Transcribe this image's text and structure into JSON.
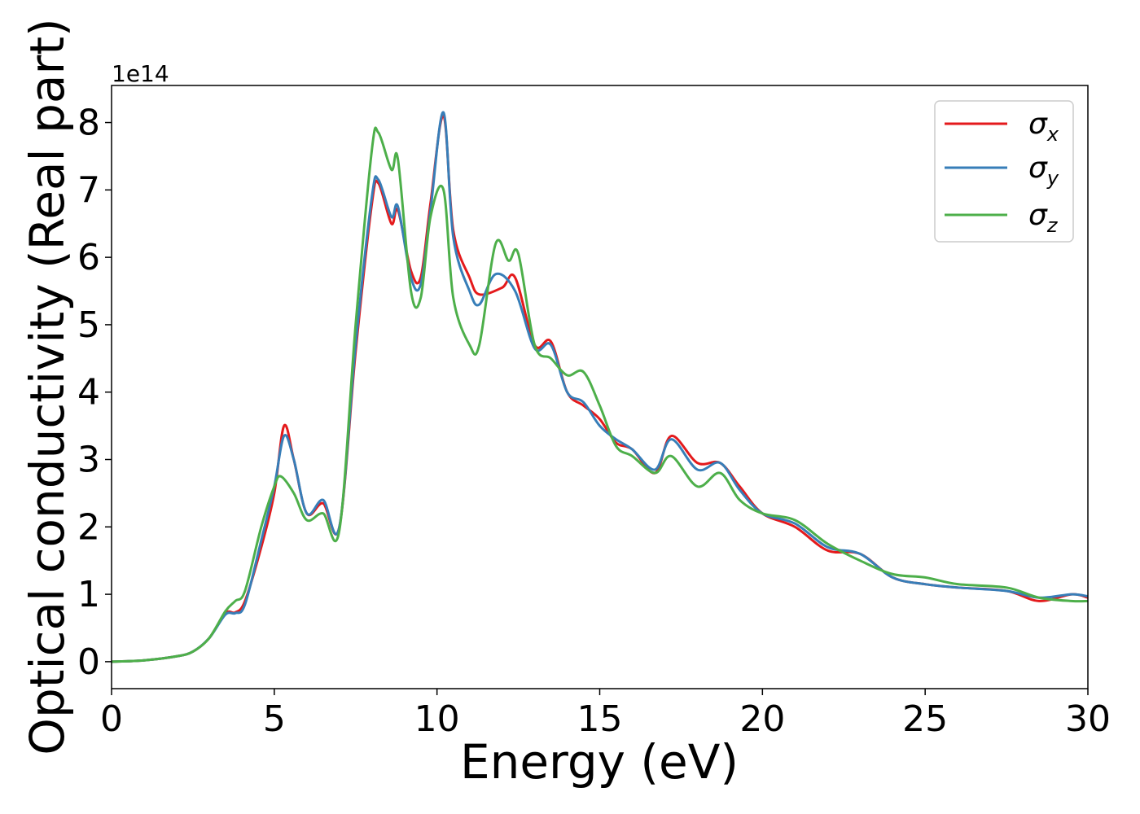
{
  "chart_data": {
    "type": "line",
    "xlabel": "Energy (eV)",
    "ylabel": "Optical conductivity (Real part)",
    "y_multiplier": "1e14",
    "xlim": [
      0,
      30
    ],
    "ylim": [
      -0.4,
      8.55
    ],
    "x_ticks": [
      0,
      5,
      10,
      15,
      20,
      25,
      30
    ],
    "y_ticks": [
      0,
      1,
      2,
      3,
      4,
      5,
      6,
      7,
      8
    ],
    "grid": false,
    "legend_placement": "top-right",
    "series": [
      {
        "name": "σx",
        "symbol": "σ",
        "subscript": "x",
        "color": "#e41a1c",
        "x": [
          0,
          1,
          2,
          2.5,
          3,
          3.5,
          3.8,
          4.1,
          4.6,
          5.0,
          5.3,
          5.6,
          6.0,
          6.5,
          7.0,
          7.5,
          8.0,
          8.2,
          8.6,
          8.8,
          9.2,
          9.5,
          9.8,
          10.2,
          10.5,
          11.0,
          11.3,
          12.0,
          12.4,
          13.0,
          13.5,
          14.0,
          14.5,
          15.0,
          15.5,
          16.0,
          16.7,
          17.2,
          18.0,
          18.7,
          19.3,
          20.0,
          21.0,
          22.0,
          23.0,
          24.0,
          25.0,
          26.0,
          27.5,
          28.5,
          29.5,
          30.0
        ],
        "values": [
          0,
          0.02,
          0.08,
          0.15,
          0.35,
          0.72,
          0.73,
          0.9,
          1.7,
          2.5,
          3.5,
          3.0,
          2.2,
          2.35,
          2.0,
          4.6,
          6.8,
          7.1,
          6.5,
          6.7,
          5.8,
          5.7,
          6.8,
          8.1,
          6.4,
          5.7,
          5.45,
          5.55,
          5.7,
          4.7,
          4.75,
          4.0,
          3.8,
          3.6,
          3.25,
          3.15,
          2.8,
          3.35,
          2.95,
          2.95,
          2.6,
          2.2,
          2.0,
          1.65,
          1.6,
          1.25,
          1.15,
          1.1,
          1.05,
          0.9,
          1.0,
          0.95
        ]
      },
      {
        "name": "σy",
        "symbol": "σ",
        "subscript": "y",
        "color": "#377eb8",
        "x": [
          0,
          1,
          2,
          2.5,
          3,
          3.5,
          3.8,
          4.1,
          4.6,
          5.0,
          5.3,
          5.6,
          6.0,
          6.5,
          7.0,
          7.5,
          8.0,
          8.2,
          8.6,
          8.8,
          9.2,
          9.5,
          9.8,
          10.2,
          10.5,
          11.0,
          11.3,
          11.8,
          12.4,
          13.0,
          13.5,
          14.0,
          14.5,
          15.0,
          15.5,
          16.0,
          16.7,
          17.2,
          18.0,
          18.7,
          19.3,
          20.0,
          21.0,
          22.0,
          23.0,
          24.0,
          25.0,
          26.0,
          27.5,
          28.5,
          29.5,
          30.0
        ],
        "values": [
          0,
          0.02,
          0.08,
          0.15,
          0.35,
          0.7,
          0.72,
          0.85,
          1.8,
          2.6,
          3.35,
          3.0,
          2.2,
          2.4,
          2.0,
          4.7,
          6.9,
          7.15,
          6.6,
          6.75,
          5.7,
          5.6,
          6.7,
          8.15,
          6.3,
          5.5,
          5.3,
          5.75,
          5.5,
          4.65,
          4.7,
          4.0,
          3.85,
          3.5,
          3.3,
          3.15,
          2.85,
          3.3,
          2.85,
          2.95,
          2.55,
          2.2,
          2.05,
          1.7,
          1.6,
          1.25,
          1.15,
          1.1,
          1.05,
          0.95,
          1.0,
          0.97
        ]
      },
      {
        "name": "σz",
        "symbol": "σ",
        "subscript": "z",
        "color": "#4daf4a",
        "x": [
          0,
          1,
          2,
          2.5,
          3,
          3.5,
          3.8,
          4.1,
          4.6,
          5.0,
          5.2,
          5.6,
          6.0,
          6.5,
          7.0,
          7.5,
          8.0,
          8.2,
          8.6,
          8.8,
          9.2,
          9.5,
          9.8,
          10.2,
          10.5,
          11.0,
          11.3,
          11.8,
          12.2,
          12.5,
          13.0,
          13.5,
          14.0,
          14.5,
          15.0,
          15.5,
          16.0,
          16.7,
          17.2,
          18.0,
          18.7,
          19.3,
          20.0,
          21.0,
          22.0,
          23.0,
          24.0,
          25.0,
          26.0,
          27.5,
          28.5,
          29.5,
          30.0
        ],
        "values": [
          0,
          0.02,
          0.08,
          0.15,
          0.35,
          0.75,
          0.9,
          1.05,
          2.0,
          2.6,
          2.75,
          2.5,
          2.1,
          2.2,
          1.95,
          5.0,
          7.6,
          7.85,
          7.3,
          7.45,
          5.5,
          5.4,
          6.6,
          7.0,
          5.4,
          4.7,
          4.7,
          6.2,
          5.95,
          6.05,
          4.7,
          4.5,
          4.25,
          4.3,
          3.8,
          3.2,
          3.05,
          2.8,
          3.05,
          2.6,
          2.8,
          2.4,
          2.2,
          2.1,
          1.75,
          1.5,
          1.3,
          1.25,
          1.15,
          1.1,
          0.95,
          0.9,
          0.9
        ]
      }
    ]
  }
}
